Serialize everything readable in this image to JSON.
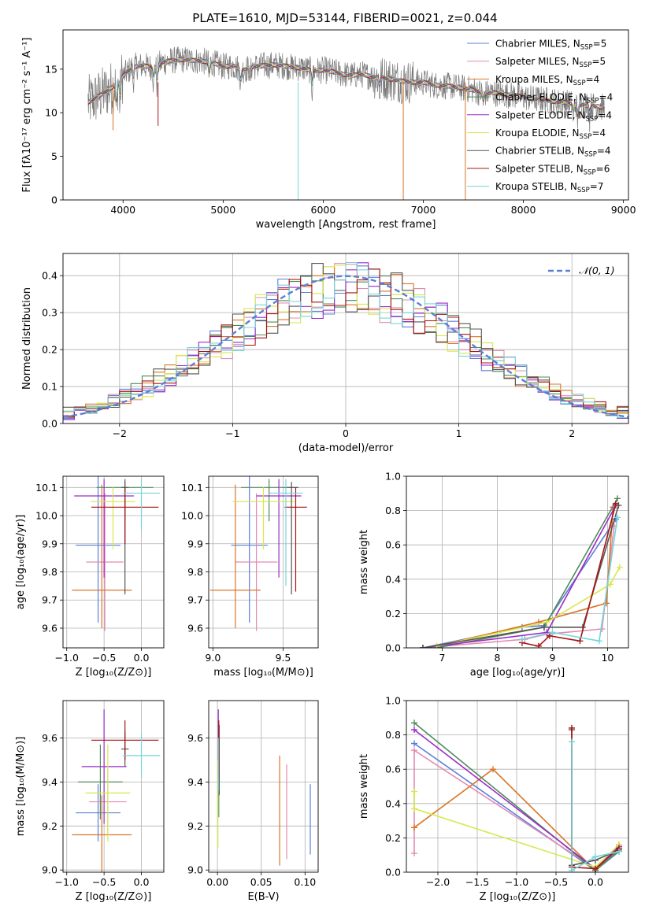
{
  "title": "PLATE=1610, MJD=53144, FIBERID=0021, z=0.044",
  "colors": {
    "Chabrier MILES": "#5b7fd6",
    "Salpeter MILES": "#e28cb4",
    "Kroupa MILES": "#d9752a",
    "Chabrier ELODIE": "#4f8a5a",
    "Salpeter ELODIE": "#9b2cc8",
    "Kroupa ELODIE": "#d7e84a",
    "Chabrier STELIB": "#555555",
    "Salpeter STELIB": "#a81414",
    "Kroupa STELIB": "#76d5d9",
    "data_spectrum": "#7a7a7a",
    "normal_curve": "#5b7fd6"
  },
  "chart_data": [
    {
      "type": "line",
      "panel": "spectrum",
      "xlabel": "wavelength [Angstrom, rest frame]",
      "ylabel": "Flux [fλ10⁻¹⁷ erg cm⁻² s⁻¹ A⁻¹]",
      "xlim": [
        3400,
        9050
      ],
      "ylim": [
        0,
        19.5
      ],
      "xticks": [
        4000,
        5000,
        6000,
        7000,
        8000,
        9000
      ],
      "yticks": [
        0,
        5,
        10,
        15
      ],
      "grid": false,
      "legend": "top-right",
      "legend_entries": [
        {
          "name": "Chabrier MILES",
          "n": "5"
        },
        {
          "name": "Salpeter MILES",
          "n": "5"
        },
        {
          "name": "Kroupa MILES",
          "n": "4"
        },
        {
          "name": "Chabrier ELODIE",
          "n": "4"
        },
        {
          "name": "Salpeter ELODIE",
          "n": "4"
        },
        {
          "name": "Kroupa ELODIE",
          "n": "4"
        },
        {
          "name": "Chabrier STELIB",
          "n": "4"
        },
        {
          "name": "Salpeter STELIB",
          "n": "6"
        },
        {
          "name": "Kroupa STELIB",
          "n": "7"
        }
      ],
      "continuum": {
        "x": [
          3650,
          3700,
          3800,
          3900,
          4000,
          4100,
          4200,
          4300,
          4400,
          4500,
          4600,
          4700,
          4800,
          4900,
          5000,
          5100,
          5200,
          5300,
          5400,
          5500,
          5600,
          5700,
          5800,
          5900,
          6000,
          6100,
          6200,
          6300,
          6400,
          6500,
          6600,
          6700,
          6800,
          6900,
          7000,
          7100,
          7200,
          7300,
          7400,
          7500,
          7600,
          7700,
          7800,
          7900,
          8000,
          8100,
          8200,
          8300,
          8400,
          8500,
          8600,
          8700,
          8800
        ],
        "y": [
          11.2,
          11.5,
          12.2,
          13.0,
          14.2,
          15.3,
          15.4,
          15.2,
          15.8,
          16.0,
          16.1,
          16.0,
          15.9,
          15.7,
          15.3,
          15.4,
          14.9,
          15.3,
          15.4,
          15.5,
          15.4,
          15.2,
          15.1,
          14.8,
          14.9,
          14.7,
          14.4,
          14.3,
          14.4,
          14.1,
          14.0,
          13.8,
          13.6,
          13.5,
          13.5,
          13.2,
          13.1,
          13.0,
          12.8,
          12.6,
          12.2,
          12.3,
          12.1,
          12.0,
          11.8,
          11.6,
          11.5,
          11.3,
          11.2,
          11.0,
          10.9,
          10.8,
          10.6
        ]
      }
    },
    {
      "type": "line",
      "panel": "residual-histogram",
      "xlabel": "(data-model)/error",
      "ylabel": "Normed distribution",
      "xlim": [
        -2.5,
        2.5
      ],
      "ylim": [
        0,
        0.46
      ],
      "xticks": [
        -2,
        -1,
        0,
        1,
        2
      ],
      "yticks": [
        0.0,
        0.1,
        0.2,
        0.3,
        0.4
      ],
      "grid": true,
      "legend": "top-right",
      "legend_label": "𝒩(0, 1)",
      "gaussian": {
        "mean": 0,
        "sigma": 1
      },
      "bin_width": 0.1
    },
    {
      "type": "scatter",
      "panel": "age-vs-metallicity",
      "xlabel": "Z [log₁₀(Z/Z⊙)]",
      "ylabel": "age  [log₁₀(age/yr)]",
      "xlim": [
        -1.05,
        0.3
      ],
      "ylim": [
        9.53,
        10.14
      ],
      "xticks": [
        -1.0,
        -0.5,
        0.0
      ],
      "yticks": [
        9.6,
        9.7,
        9.8,
        9.9,
        10.0,
        10.1
      ],
      "grid": true,
      "series": [
        {
          "name": "Chabrier MILES",
          "x": -0.58,
          "xerr": 0.3,
          "y": 9.895,
          "yerr_low": 9.62,
          "yerr_high": 10.14
        },
        {
          "name": "Salpeter MILES",
          "x": -0.49,
          "xerr": 0.25,
          "y": 9.835,
          "yerr_low": 9.59,
          "yerr_high": 10.08
        },
        {
          "name": "Kroupa MILES",
          "x": -0.53,
          "xerr": 0.4,
          "y": 9.735,
          "yerr_low": 9.6,
          "yerr_high": 10.11
        },
        {
          "name": "Chabrier ELODIE",
          "x": -0.22,
          "xerr": 0.38,
          "y": 10.1,
          "yerr_low": 9.98,
          "yerr_high": 10.12
        },
        {
          "name": "Salpeter ELODIE",
          "x": -0.5,
          "xerr": 0.4,
          "y": 10.07,
          "yerr_low": 9.78,
          "yerr_high": 10.13
        },
        {
          "name": "Kroupa ELODIE",
          "x": -0.38,
          "xerr": 0.3,
          "y": 10.05,
          "yerr_low": 9.88,
          "yerr_high": 10.1
        },
        {
          "name": "Chabrier STELIB",
          "x": -0.22,
          "xerr": 0.05,
          "y": 10.1,
          "yerr_low": 9.72,
          "yerr_high": 10.13
        },
        {
          "name": "Salpeter STELIB",
          "x": -0.22,
          "xerr": 0.45,
          "y": 10.03,
          "yerr_low": 9.9,
          "yerr_high": 10.1
        },
        {
          "name": "Kroupa STELIB",
          "x": 0.0,
          "xerr": 0.25,
          "y": 10.08,
          "yerr_low": 9.95,
          "yerr_high": 10.13
        }
      ]
    },
    {
      "type": "scatter",
      "panel": "age-vs-mass",
      "xlabel": "mass [log₁₀(M/M⊙)]",
      "ylabel": "",
      "xlim": [
        8.97,
        9.75
      ],
      "ylim": [
        9.53,
        10.14
      ],
      "xticks": [
        9.0,
        9.5
      ],
      "yticks": [
        9.6,
        9.7,
        9.8,
        9.9,
        10.0,
        10.1
      ],
      "grid": true,
      "series": [
        {
          "name": "Chabrier MILES",
          "x": 9.26,
          "xerr": 0.13,
          "y": 9.895,
          "yerr_low": 9.62,
          "yerr_high": 10.14
        },
        {
          "name": "Salpeter MILES",
          "x": 9.31,
          "xerr": 0.15,
          "y": 9.835,
          "yerr_low": 9.59,
          "yerr_high": 10.08
        },
        {
          "name": "Kroupa MILES",
          "x": 9.16,
          "xerr": 0.18,
          "y": 9.735,
          "yerr_low": 9.6,
          "yerr_high": 10.11
        },
        {
          "name": "Chabrier ELODIE",
          "x": 9.4,
          "xerr": 0.2,
          "y": 10.1,
          "yerr_low": 9.98,
          "yerr_high": 10.13
        },
        {
          "name": "Salpeter ELODIE",
          "x": 9.47,
          "xerr": 0.16,
          "y": 10.07,
          "yerr_low": 9.78,
          "yerr_high": 10.13
        },
        {
          "name": "Kroupa ELODIE",
          "x": 9.36,
          "xerr": 0.22,
          "y": 10.05,
          "yerr_low": 9.88,
          "yerr_high": 10.1
        },
        {
          "name": "Chabrier STELIB",
          "x": 9.56,
          "xerr": 0.05,
          "y": 10.1,
          "yerr_low": 9.72,
          "yerr_high": 10.12
        },
        {
          "name": "Salpeter STELIB",
          "x": 9.59,
          "xerr": 0.08,
          "y": 10.03,
          "yerr_low": 9.73,
          "yerr_high": 10.1
        },
        {
          "name": "Kroupa STELIB",
          "x": 9.52,
          "xerr": 0.12,
          "y": 10.08,
          "yerr_low": 9.75,
          "yerr_high": 10.13
        }
      ]
    },
    {
      "type": "line",
      "panel": "mass-weight-vs-age",
      "xlabel": "age  [log₁₀(age/yr)]",
      "ylabel": "mass weight",
      "xlim": [
        6.35,
        10.38
      ],
      "ylim": [
        0,
        1.0
      ],
      "xticks": [
        7,
        8,
        9,
        10
      ],
      "yticks": [
        0.0,
        0.2,
        0.4,
        0.6,
        0.8,
        1.0
      ],
      "grid": true,
      "series": [
        {
          "name": "Chabrier MILES",
          "x": [
            6.65,
            8.45,
            8.85,
            10.15
          ],
          "y": [
            0.0,
            0.12,
            0.13,
            0.75
          ]
        },
        {
          "name": "Salpeter MILES",
          "x": [
            6.65,
            8.5,
            8.9,
            9.9,
            10.12
          ],
          "y": [
            0.0,
            0.05,
            0.08,
            0.11,
            0.71
          ]
        },
        {
          "name": "Kroupa MILES",
          "x": [
            6.9,
            8.75,
            9.98,
            10.1
          ],
          "y": [
            0.01,
            0.15,
            0.26,
            0.82
          ]
        },
        {
          "name": "Chabrier ELODIE",
          "x": [
            6.9,
            8.85,
            10.18
          ],
          "y": [
            0.0,
            0.12,
            0.87
          ]
        },
        {
          "name": "Salpeter ELODIE",
          "x": [
            6.65,
            8.9,
            10.15
          ],
          "y": [
            0.0,
            0.09,
            0.83
          ]
        },
        {
          "name": "Kroupa ELODIE",
          "x": [
            6.9,
            8.9,
            10.05,
            10.22
          ],
          "y": [
            0.01,
            0.15,
            0.37,
            0.47
          ]
        },
        {
          "name": "Chabrier STELIB",
          "x": [
            6.65,
            8.85,
            9.55,
            10.2
          ],
          "y": [
            0.0,
            0.12,
            0.12,
            0.83
          ]
        },
        {
          "name": "Salpeter STELIB",
          "x": [
            8.45,
            8.75,
            8.95,
            9.5,
            10.15
          ],
          "y": [
            0.03,
            0.01,
            0.07,
            0.04,
            0.84
          ]
        },
        {
          "name": "Kroupa STELIB",
          "x": [
            8.45,
            9.0,
            9.85,
            10.18
          ],
          "y": [
            0.05,
            0.09,
            0.04,
            0.76
          ]
        }
      ]
    },
    {
      "type": "scatter",
      "panel": "mass-vs-metallicity",
      "xlabel": "Z [log₁₀(Z/Z⊙)]",
      "ylabel": "mass [log₁₀(M/M⊙)]",
      "xlim": [
        -1.05,
        0.3
      ],
      "ylim": [
        8.99,
        9.77
      ],
      "xticks": [
        -1.0,
        -0.5,
        0.0
      ],
      "yticks": [
        9.0,
        9.2,
        9.4,
        9.6
      ],
      "grid": true,
      "series": [
        {
          "name": "Chabrier MILES",
          "x": -0.58,
          "xerr": 0.3,
          "y": 9.26,
          "yerr": 0.13
        },
        {
          "name": "Salpeter MILES",
          "x": -0.45,
          "xerr": 0.25,
          "y": 9.31,
          "yerr": 0.15
        },
        {
          "name": "Kroupa MILES",
          "x": -0.53,
          "xerr": 0.4,
          "y": 9.16,
          "yerr": 0.18
        },
        {
          "name": "Chabrier ELODIE",
          "x": -0.55,
          "xerr": 0.3,
          "y": 9.4,
          "yerr": 0.17
        },
        {
          "name": "Salpeter ELODIE",
          "x": -0.5,
          "xerr": 0.3,
          "y": 9.47,
          "yerr": 0.26
        },
        {
          "name": "Kroupa ELODIE",
          "x": -0.45,
          "xerr": 0.3,
          "y": 9.35,
          "yerr": 0.22
        },
        {
          "name": "Chabrier STELIB",
          "x": -0.22,
          "xerr": 0.05,
          "y": 9.55,
          "yerr": 0.08
        },
        {
          "name": "Salpeter STELIB",
          "x": -0.22,
          "xerr": 0.45,
          "y": 9.59,
          "yerr": 0.09
        },
        {
          "name": "Kroupa STELIB",
          "x": 0.0,
          "xerr": 0.25,
          "y": 9.52,
          "yerr": 0.1
        }
      ]
    },
    {
      "type": "scatter",
      "panel": "mass-vs-extinction",
      "xlabel": "E(B-V)",
      "ylabel": "",
      "xlim": [
        -0.01,
        0.115
      ],
      "ylim": [
        8.99,
        9.77
      ],
      "xticks": [
        0.0,
        0.05,
        0.1
      ],
      "yticks": [
        9.0,
        9.2,
        9.4,
        9.6
      ],
      "grid": true,
      "series": [
        {
          "name": "Chabrier MILES",
          "x": 0.106,
          "y_low": 9.07,
          "y_high": 9.39
        },
        {
          "name": "Salpeter MILES",
          "x": 0.079,
          "y_low": 9.05,
          "y_high": 9.48
        },
        {
          "name": "Kroupa MILES",
          "x": 0.071,
          "y_low": 9.02,
          "y_high": 9.52
        },
        {
          "name": "Chabrier ELODIE",
          "x": 0.0015,
          "y_low": 9.24,
          "y_high": 9.56
        },
        {
          "name": "Salpeter ELODIE",
          "x": 0.001,
          "y_low": 9.5,
          "y_high": 9.73
        },
        {
          "name": "Kroupa ELODIE",
          "x": 0.0005,
          "y_low": 9.1,
          "y_high": 9.5
        },
        {
          "name": "Chabrier STELIB",
          "x": 0.002,
          "y_low": 9.34,
          "y_high": 9.66
        },
        {
          "name": "Salpeter STELIB",
          "x": 0.0015,
          "y_low": 9.42,
          "y_high": 9.68
        },
        {
          "name": "Kroupa STELIB",
          "x": 0.001,
          "y_low": 9.36,
          "y_high": 9.6
        }
      ]
    },
    {
      "type": "line",
      "panel": "mass-weight-vs-metallicity",
      "xlabel": "Z [log₁₀(Z/Z⊙)]",
      "ylabel": "mass weight",
      "xlim": [
        -2.4,
        0.42
      ],
      "ylim": [
        0,
        1.0
      ],
      "xticks": [
        -2.0,
        -1.5,
        -1.0,
        -0.5,
        0.0
      ],
      "yticks": [
        0.0,
        0.2,
        0.4,
        0.6,
        0.8,
        1.0
      ],
      "grid": true,
      "series": [
        {
          "name": "Chabrier MILES",
          "x": [
            -2.3,
            0.0,
            0.3
          ],
          "y": [
            0.75,
            0.01,
            0.13
          ]
        },
        {
          "name": "Salpeter MILES",
          "x": [
            -2.3,
            -2.3,
            0.0,
            0.3
          ],
          "y": [
            0.11,
            0.71,
            0.02,
            0.14
          ]
        },
        {
          "name": "Kroupa MILES",
          "x": [
            -2.3,
            -1.3,
            0.0,
            0.3
          ],
          "y": [
            0.26,
            0.6,
            0.01,
            0.16
          ]
        },
        {
          "name": "Chabrier ELODIE",
          "x": [
            -2.3,
            0.0,
            0.3
          ],
          "y": [
            0.87,
            0.01,
            0.12
          ]
        },
        {
          "name": "Salpeter ELODIE",
          "x": [
            -2.3,
            0.0,
            0.3
          ],
          "y": [
            0.83,
            0.02,
            0.15
          ]
        },
        {
          "name": "Kroupa ELODIE",
          "x": [
            -2.3,
            -2.3,
            0.0,
            0.3
          ],
          "y": [
            0.47,
            0.37,
            0.03,
            0.16
          ]
        },
        {
          "name": "Chabrier STELIB",
          "x": [
            -0.3,
            -0.3,
            0.0,
            0.3
          ],
          "y": [
            0.83,
            0.04,
            0.07,
            0.13
          ]
        },
        {
          "name": "Salpeter STELIB",
          "x": [
            -0.3,
            -0.3,
            0.0,
            0.3
          ],
          "y": [
            0.84,
            0.03,
            0.02,
            0.14
          ]
        },
        {
          "name": "Kroupa STELIB",
          "x": [
            -0.3,
            -0.3,
            0.0,
            0.3
          ],
          "y": [
            0.76,
            0.01,
            0.09,
            0.12
          ]
        }
      ]
    }
  ]
}
